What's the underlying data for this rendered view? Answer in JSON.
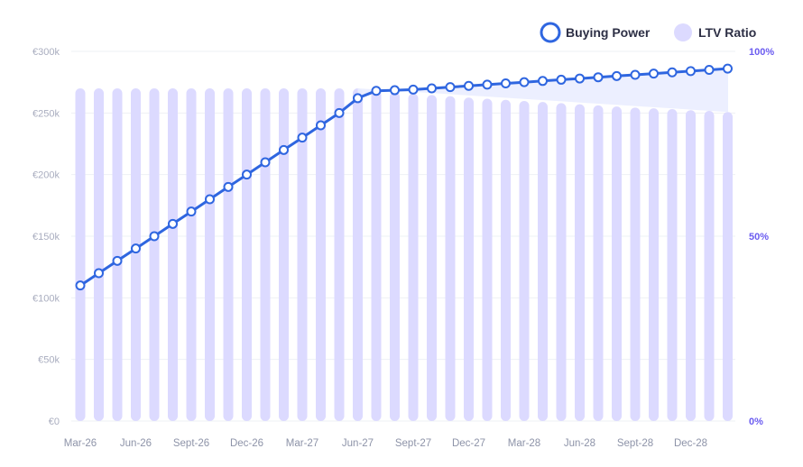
{
  "chart_data": {
    "type": "bar+line",
    "title": "",
    "legend": {
      "placement": "top-right",
      "entries": [
        {
          "label": "Buying Power",
          "marker": "ring",
          "color": "#2f66e0"
        },
        {
          "label": "LTV Ratio",
          "marker": "disc",
          "color": "#dcdaff"
        }
      ]
    },
    "colors": {
      "line": "#2f66e0",
      "bars": "#dcdaff",
      "area": "#eaedff",
      "grid": "#eef0f5",
      "left_ticks": "#a9adbf",
      "right_ticks": "#6b5cf0",
      "x_ticks": "#8d93a8"
    },
    "y_left": {
      "range": [
        0,
        300000
      ],
      "tick_labels": [
        "€0",
        "€50k",
        "€100k",
        "€150k",
        "€200k",
        "€250k",
        "€300k"
      ],
      "tick_values": [
        0,
        50000,
        100000,
        150000,
        200000,
        250000,
        300000
      ]
    },
    "y_right": {
      "range": [
        0,
        100
      ],
      "tick_labels": [
        "0%",
        "50%",
        "100%"
      ],
      "tick_values": [
        0,
        50,
        100
      ]
    },
    "x_tick_labels": [
      "Mar-26",
      "Jun-26",
      "Sept-26",
      "Dec-26",
      "Mar-27",
      "Jun-27",
      "Sept-27",
      "Dec-27",
      "Mar-28",
      "Jun-28",
      "Sept-28",
      "Dec-28"
    ],
    "x_tick_indices": [
      0,
      3,
      6,
      9,
      12,
      15,
      18,
      21,
      24,
      27,
      30,
      33
    ],
    "months": [
      "Mar-26",
      "Apr-26",
      "May-26",
      "Jun-26",
      "Jul-26",
      "Aug-26",
      "Sept-26",
      "Oct-26",
      "Nov-26",
      "Dec-26",
      "Jan-27",
      "Feb-27",
      "Mar-27",
      "Apr-27",
      "May-27",
      "Jun-27",
      "Jul-27",
      "Aug-27",
      "Sept-27",
      "Oct-27",
      "Nov-27",
      "Dec-27",
      "Jan-28",
      "Feb-28",
      "Mar-28",
      "Apr-28",
      "May-28",
      "Jun-28",
      "Jul-28",
      "Aug-28",
      "Sept-28",
      "Oct-28",
      "Nov-28",
      "Dec-28",
      "Jan-29",
      "Feb-29"
    ],
    "series": [
      {
        "name": "Buying Power",
        "axis": "left",
        "type": "line",
        "values": [
          110000,
          120000,
          130000,
          140000,
          150000,
          160000,
          170000,
          180000,
          190000,
          200000,
          210000,
          220000,
          230000,
          240000,
          250000,
          262000,
          268000,
          268500,
          269000,
          270000,
          271000,
          272000,
          273000,
          274000,
          275000,
          276000,
          277000,
          278000,
          279000,
          280000,
          281000,
          282000,
          283000,
          284000,
          285000,
          286000
        ]
      },
      {
        "name": "LTV Ratio",
        "axis": "right",
        "type": "bar",
        "values": [
          90,
          90,
          90,
          90,
          90,
          90,
          90,
          90,
          90,
          90,
          90,
          90,
          90,
          90,
          90,
          90,
          89.4,
          89,
          88.6,
          88.2,
          87.9,
          87.5,
          87.2,
          86.9,
          86.6,
          86.3,
          86,
          85.7,
          85.4,
          85.1,
          84.8,
          84.6,
          84.4,
          84.1,
          83.9,
          83.6
        ]
      }
    ],
    "grid": true
  }
}
